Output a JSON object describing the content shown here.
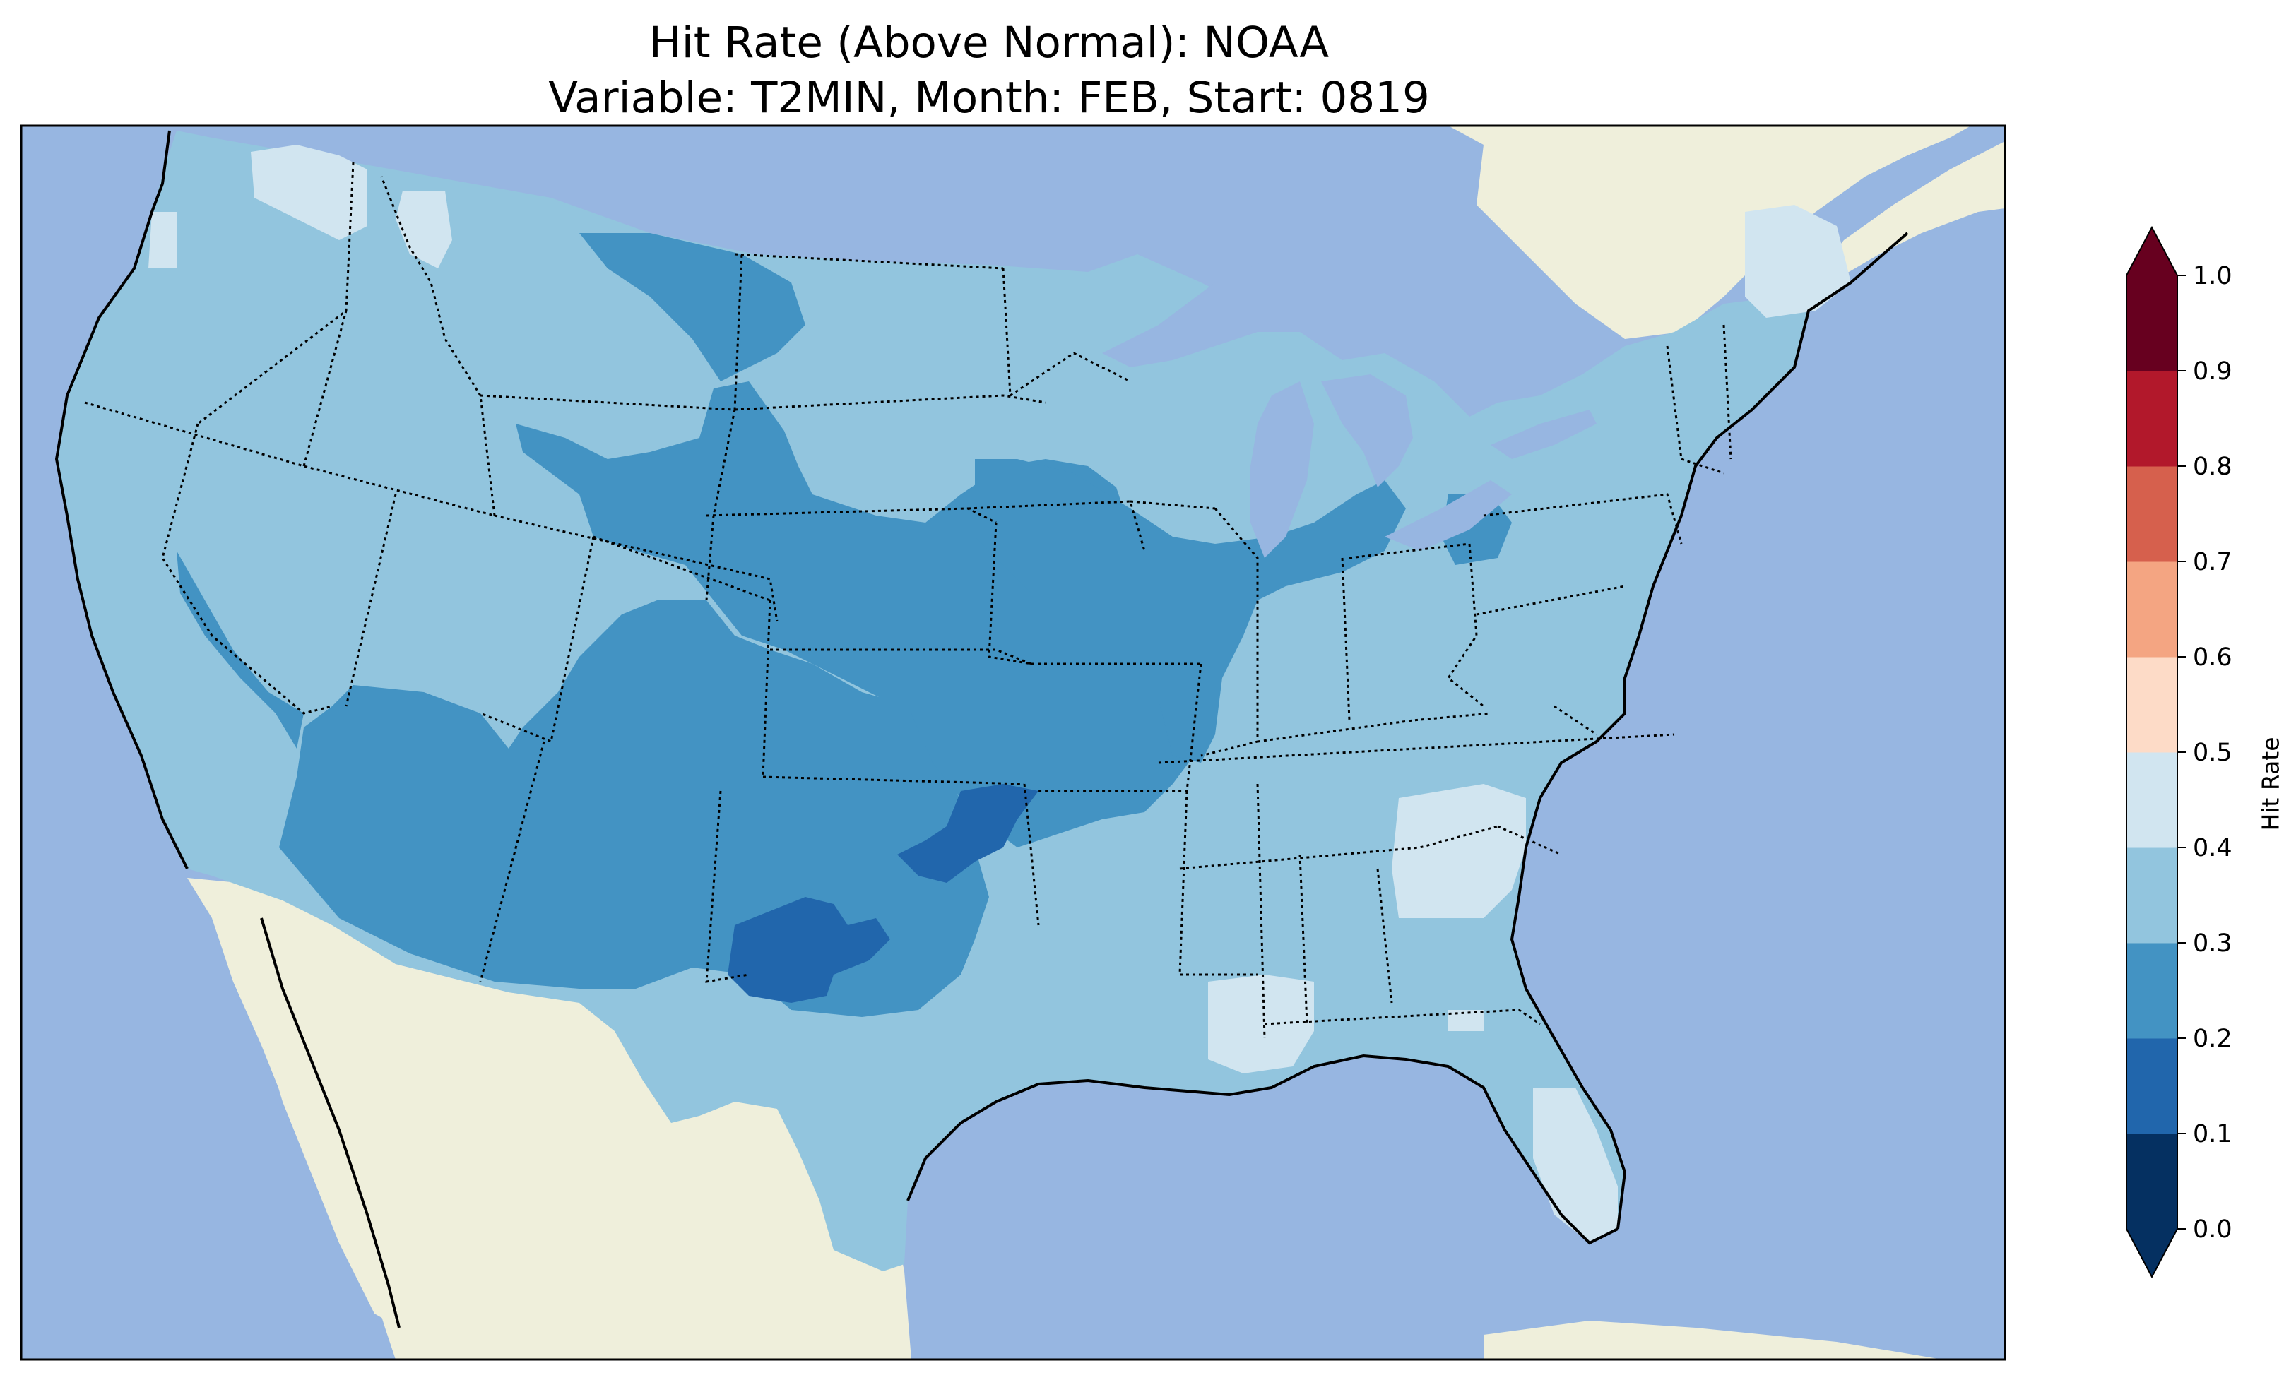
{
  "title": {
    "line1": "Hit Rate (Above Normal): NOAA",
    "line2": "Variable: T2MIN, Month: FEB, Start: 0819"
  },
  "colors": {
    "ocean": "#97b6e1",
    "land": "#efefdb",
    "border": "#000000"
  },
  "colorbar": {
    "label": "Hit Rate",
    "ticks": [
      "0.0",
      "0.1",
      "0.2",
      "0.3",
      "0.4",
      "0.5",
      "0.6",
      "0.7",
      "0.8",
      "0.9",
      "1.0"
    ],
    "bins": [
      {
        "range": [
          0.0,
          0.1
        ],
        "color": "#053061"
      },
      {
        "range": [
          0.1,
          0.2
        ],
        "color": "#2166ac"
      },
      {
        "range": [
          0.2,
          0.3
        ],
        "color": "#4393c3"
      },
      {
        "range": [
          0.3,
          0.4
        ],
        "color": "#92c5de"
      },
      {
        "range": [
          0.4,
          0.5
        ],
        "color": "#d1e5f0"
      },
      {
        "range": [
          0.5,
          0.6
        ],
        "color": "#fddbc7"
      },
      {
        "range": [
          0.6,
          0.7
        ],
        "color": "#f4a582"
      },
      {
        "range": [
          0.7,
          0.8
        ],
        "color": "#d6604d"
      },
      {
        "range": [
          0.8,
          0.9
        ],
        "color": "#b2182b"
      },
      {
        "range": [
          0.9,
          1.0
        ],
        "color": "#67001f"
      }
    ],
    "extend": "both"
  },
  "map_data": {
    "type": "heatmap",
    "projection": "Lambert Conformal",
    "region": "Contiguous United States",
    "background_value": 0.35,
    "regions": [
      {
        "name": "southwest",
        "value": 0.25
      },
      {
        "name": "central-plains",
        "value": 0.25
      },
      {
        "name": "wyoming-colorado",
        "value": 0.25
      },
      {
        "name": "iowa-illinois",
        "value": 0.25
      },
      {
        "name": "northern-montana",
        "value": 0.25
      },
      {
        "name": "texas-oklahoma-core",
        "value": 0.15
      },
      {
        "name": "pacific-northwest",
        "value": 0.45
      },
      {
        "name": "maine",
        "value": 0.45
      },
      {
        "name": "carolinas",
        "value": 0.45
      },
      {
        "name": "florida",
        "value": 0.45
      },
      {
        "name": "gulf-coast",
        "value": 0.45
      }
    ]
  }
}
